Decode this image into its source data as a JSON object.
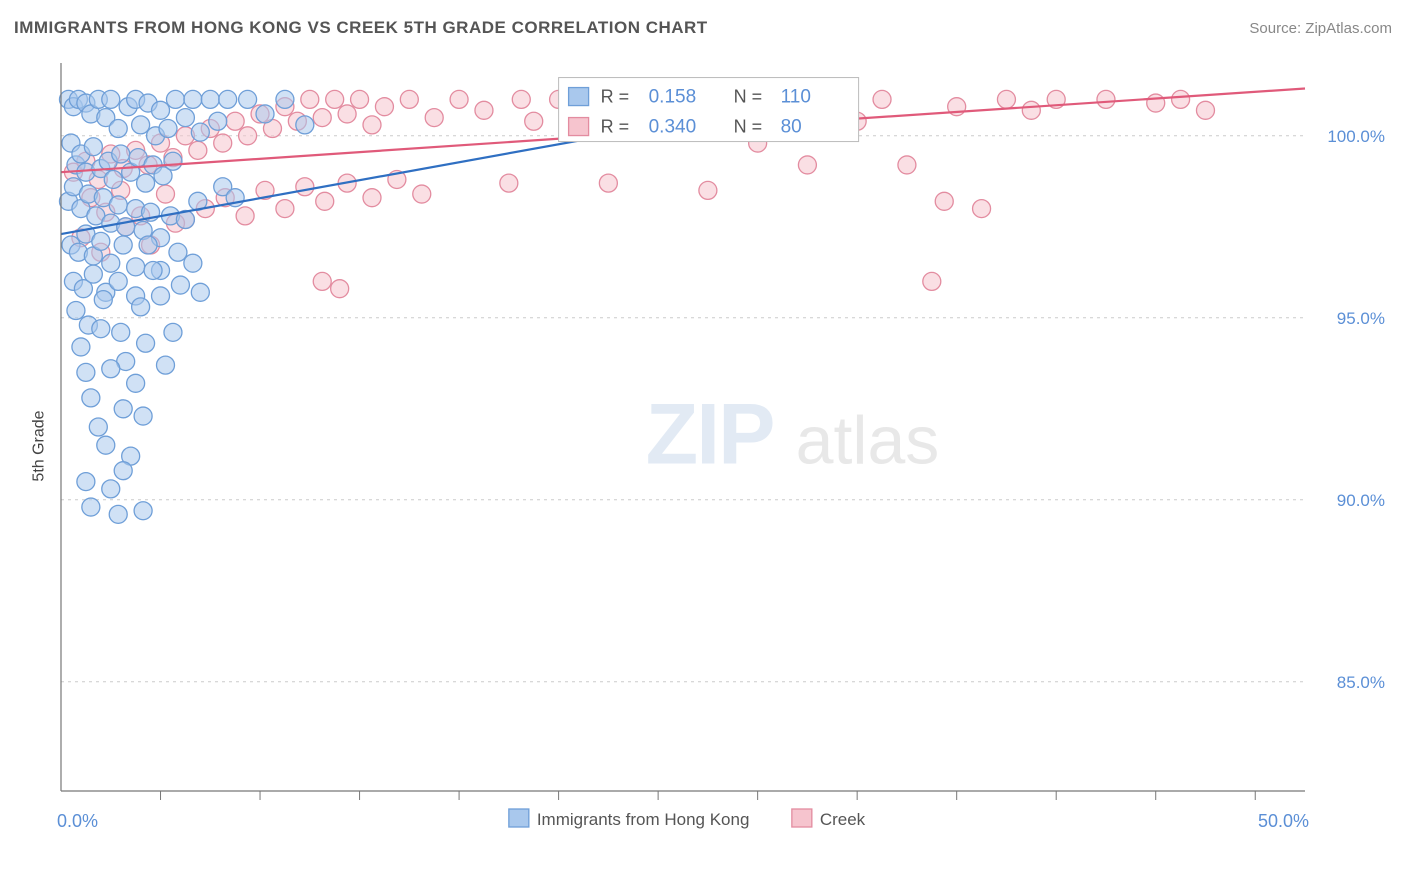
{
  "title": "IMMIGRANTS FROM HONG KONG VS CREEK 5TH GRADE CORRELATION CHART",
  "source_label": "Source:",
  "source_name": "ZipAtlas.com",
  "y_axis_label": "5th Grade",
  "watermark": {
    "part1": "ZIP",
    "part2": "atlas"
  },
  "chart": {
    "type": "scatter",
    "background_color": "#ffffff",
    "grid_color": "#cccccc",
    "axis_color": "#777777",
    "tick_label_color": "#5b8fd6",
    "xlim": [
      0,
      50
    ],
    "x_ticks_major_labeled": [
      0,
      50
    ],
    "x_ticks_minor": [
      4,
      8,
      12,
      16,
      20,
      24,
      28,
      32,
      36,
      40,
      44,
      48
    ],
    "x_tick_label_format": "{v}.0%",
    "ylim": [
      82,
      102
    ],
    "y_ticks": [
      85,
      90,
      95,
      100
    ],
    "y_tick_label_format": "{v}.0%",
    "marker_radius": 9,
    "marker_fill_opacity": 0.55,
    "trend_line_width": 2.2,
    "series": [
      {
        "name": "Immigrants from Hong Kong",
        "color_fill": "#a9c8ed",
        "color_stroke": "#6f9fd8",
        "trend_color": "#2f6fc2",
        "R": 0.158,
        "N": 110,
        "trend": {
          "x1": 0,
          "y1": 97.3,
          "x2": 30,
          "y2": 101
        },
        "points": [
          [
            0.3,
            101
          ],
          [
            0.5,
            100.8
          ],
          [
            0.7,
            101
          ],
          [
            1.0,
            100.9
          ],
          [
            1.2,
            100.6
          ],
          [
            1.5,
            101
          ],
          [
            1.8,
            100.5
          ],
          [
            2.0,
            101
          ],
          [
            2.3,
            100.2
          ],
          [
            2.7,
            100.8
          ],
          [
            3.0,
            101
          ],
          [
            3.2,
            100.3
          ],
          [
            3.5,
            100.9
          ],
          [
            3.8,
            100
          ],
          [
            4.0,
            100.7
          ],
          [
            4.3,
            100.2
          ],
          [
            4.6,
            101
          ],
          [
            5.0,
            100.5
          ],
          [
            5.3,
            101
          ],
          [
            5.6,
            100.1
          ],
          [
            6.0,
            101
          ],
          [
            6.3,
            100.4
          ],
          [
            6.7,
            101
          ],
          [
            0.4,
            99.8
          ],
          [
            0.6,
            99.2
          ],
          [
            0.8,
            99.5
          ],
          [
            1.0,
            99.0
          ],
          [
            1.3,
            99.7
          ],
          [
            1.6,
            99.1
          ],
          [
            1.9,
            99.3
          ],
          [
            2.1,
            98.8
          ],
          [
            2.4,
            99.5
          ],
          [
            2.8,
            99.0
          ],
          [
            3.1,
            99.4
          ],
          [
            3.4,
            98.7
          ],
          [
            3.7,
            99.2
          ],
          [
            4.1,
            98.9
          ],
          [
            4.5,
            99.3
          ],
          [
            0.3,
            98.2
          ],
          [
            0.5,
            98.6
          ],
          [
            0.8,
            98.0
          ],
          [
            1.1,
            98.4
          ],
          [
            1.4,
            97.8
          ],
          [
            1.7,
            98.3
          ],
          [
            2.0,
            97.6
          ],
          [
            2.3,
            98.1
          ],
          [
            2.6,
            97.5
          ],
          [
            3.0,
            98.0
          ],
          [
            3.3,
            97.4
          ],
          [
            3.6,
            97.9
          ],
          [
            4.0,
            97.2
          ],
          [
            4.4,
            97.8
          ],
          [
            5.0,
            97.7
          ],
          [
            5.5,
            98.2
          ],
          [
            6.5,
            98.6
          ],
          [
            7.0,
            98.3
          ],
          [
            0.4,
            97.0
          ],
          [
            0.7,
            96.8
          ],
          [
            1.0,
            97.3
          ],
          [
            1.3,
            96.7
          ],
          [
            1.6,
            97.1
          ],
          [
            2.0,
            96.5
          ],
          [
            2.5,
            97.0
          ],
          [
            3.0,
            96.4
          ],
          [
            3.5,
            97.0
          ],
          [
            4.0,
            96.3
          ],
          [
            4.7,
            96.8
          ],
          [
            5.3,
            96.5
          ],
          [
            0.5,
            96.0
          ],
          [
            0.9,
            95.8
          ],
          [
            1.3,
            96.2
          ],
          [
            1.8,
            95.7
          ],
          [
            2.3,
            96.0
          ],
          [
            3.0,
            95.6
          ],
          [
            3.7,
            96.3
          ],
          [
            0.6,
            95.2
          ],
          [
            1.1,
            94.8
          ],
          [
            1.7,
            95.5
          ],
          [
            2.4,
            94.6
          ],
          [
            3.2,
            95.3
          ],
          [
            4.0,
            95.6
          ],
          [
            4.8,
            95.9
          ],
          [
            5.6,
            95.7
          ],
          [
            0.8,
            94.2
          ],
          [
            1.6,
            94.7
          ],
          [
            2.6,
            93.8
          ],
          [
            3.4,
            94.3
          ],
          [
            4.5,
            94.6
          ],
          [
            1.0,
            93.5
          ],
          [
            2.0,
            93.6
          ],
          [
            3.0,
            93.2
          ],
          [
            4.2,
            93.7
          ],
          [
            1.2,
            92.8
          ],
          [
            2.5,
            92.5
          ],
          [
            1.5,
            92.0
          ],
          [
            3.3,
            92.3
          ],
          [
            1.8,
            91.5
          ],
          [
            2.8,
            91.2
          ],
          [
            1.0,
            90.5
          ],
          [
            2.0,
            90.3
          ],
          [
            2.5,
            90.8
          ],
          [
            1.2,
            89.8
          ],
          [
            2.3,
            89.6
          ],
          [
            3.3,
            89.7
          ],
          [
            28.0,
            101
          ],
          [
            30.0,
            100.8
          ],
          [
            7.5,
            101
          ],
          [
            8.2,
            100.6
          ],
          [
            9.0,
            101
          ],
          [
            9.8,
            100.3
          ]
        ]
      },
      {
        "name": "Creek",
        "color_fill": "#f6c4ce",
        "color_stroke": "#e38ca0",
        "trend_color": "#e05a7a",
        "R": 0.34,
        "N": 80,
        "trend": {
          "x1": 0,
          "y1": 99.0,
          "x2": 50,
          "y2": 101.3
        },
        "points": [
          [
            0.5,
            99.0
          ],
          [
            1.0,
            99.3
          ],
          [
            1.5,
            98.8
          ],
          [
            2.0,
            99.5
          ],
          [
            2.5,
            99.1
          ],
          [
            3.0,
            99.6
          ],
          [
            3.5,
            99.2
          ],
          [
            4.0,
            99.8
          ],
          [
            4.5,
            99.4
          ],
          [
            5.0,
            100
          ],
          [
            5.5,
            99.6
          ],
          [
            6.0,
            100.2
          ],
          [
            6.5,
            99.8
          ],
          [
            7.0,
            100.4
          ],
          [
            7.5,
            100
          ],
          [
            8.0,
            100.6
          ],
          [
            8.5,
            100.2
          ],
          [
            9.0,
            100.8
          ],
          [
            9.5,
            100.4
          ],
          [
            10,
            101
          ],
          [
            10.5,
            100.5
          ],
          [
            11,
            101
          ],
          [
            11.5,
            100.6
          ],
          [
            12,
            101
          ],
          [
            12.5,
            100.3
          ],
          [
            13,
            100.8
          ],
          [
            14,
            101
          ],
          [
            15,
            100.5
          ],
          [
            16,
            101
          ],
          [
            17,
            100.7
          ],
          [
            18,
            98.7
          ],
          [
            18.5,
            101
          ],
          [
            19,
            100.4
          ],
          [
            20,
            101
          ],
          [
            21,
            100.2
          ],
          [
            22,
            98.7
          ],
          [
            24,
            101
          ],
          [
            25,
            100.6
          ],
          [
            26,
            98.5
          ],
          [
            28,
            99.8
          ],
          [
            29,
            101
          ],
          [
            30,
            99.2
          ],
          [
            32,
            100.4
          ],
          [
            33,
            101
          ],
          [
            34,
            99.2
          ],
          [
            35,
            96.0
          ],
          [
            35.5,
            98.2
          ],
          [
            36,
            100.8
          ],
          [
            37,
            98.0
          ],
          [
            38,
            101
          ],
          [
            39,
            100.7
          ],
          [
            40,
            101
          ],
          [
            42,
            101
          ],
          [
            44,
            100.9
          ],
          [
            45,
            101
          ],
          [
            46,
            100.7
          ],
          [
            1.2,
            98.3
          ],
          [
            1.8,
            97.9
          ],
          [
            2.4,
            98.5
          ],
          [
            3.2,
            97.8
          ],
          [
            4.2,
            98.4
          ],
          [
            5.0,
            97.7
          ],
          [
            5.8,
            98.0
          ],
          [
            6.6,
            98.3
          ],
          [
            7.4,
            97.8
          ],
          [
            8.2,
            98.5
          ],
          [
            9.0,
            98.0
          ],
          [
            9.8,
            98.6
          ],
          [
            10.6,
            98.2
          ],
          [
            11.5,
            98.7
          ],
          [
            12.5,
            98.3
          ],
          [
            13.5,
            98.8
          ],
          [
            14.5,
            98.4
          ],
          [
            0.8,
            97.2
          ],
          [
            1.6,
            96.8
          ],
          [
            2.6,
            97.5
          ],
          [
            3.6,
            97.0
          ],
          [
            4.6,
            97.6
          ],
          [
            10.5,
            96.0
          ],
          [
            11.2,
            95.8
          ]
        ]
      }
    ]
  },
  "legend_box": {
    "rows": [
      {
        "swatch": "blue",
        "R_label": "R =",
        "R": "0.158",
        "N_label": "N =",
        "N": "110"
      },
      {
        "swatch": "pink",
        "R_label": "R =",
        "R": "0.340",
        "N_label": "N =",
        "80": "80",
        "N_val": "80"
      }
    ]
  },
  "bottom_legend": [
    {
      "swatch": "blue",
      "label": "Immigrants from Hong Kong"
    },
    {
      "swatch": "pink",
      "label": "Creek"
    }
  ]
}
